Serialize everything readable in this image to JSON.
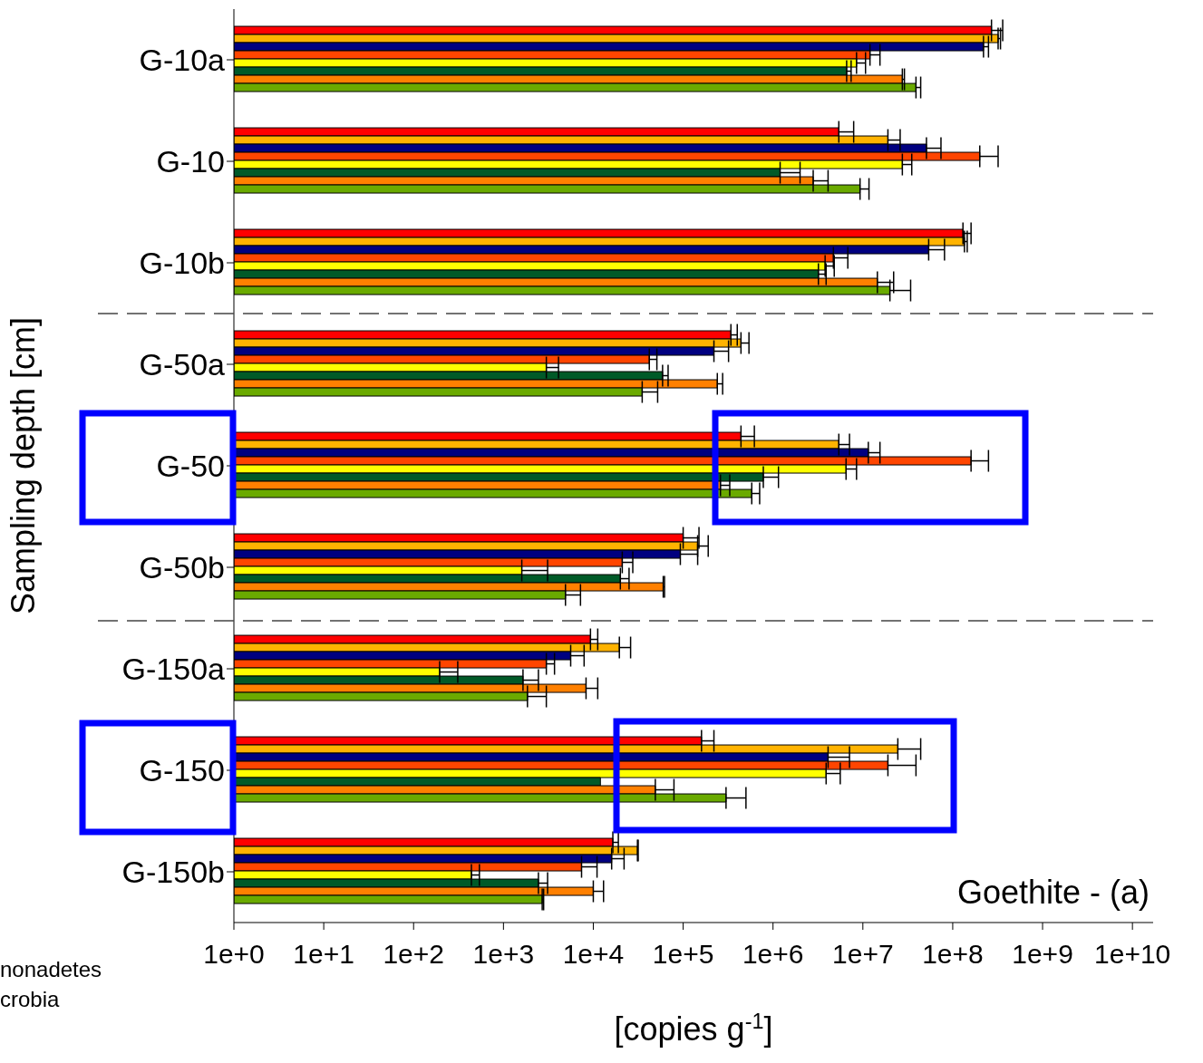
{
  "chart_data": {
    "type": "bar",
    "orientation": "horizontal",
    "log": "x",
    "xlabel": "[copies g$^{-1}$]",
    "ylabel": "Sampling depth [cm]",
    "annotations": [
      "Goethite - (a)",
      "nonadetes",
      "crobia"
    ],
    "categories": [
      "G-10a",
      "G-10",
      "G-10b",
      "G-50a",
      "G-50",
      "G-50b",
      "G-150a",
      "G-150",
      "G-150b"
    ],
    "xlim": [
      1,
      17000000000.0
    ],
    "xticks": [
      {
        "value": 1,
        "label": "1e+0"
      },
      {
        "value": 10,
        "label": "1e+1"
      },
      {
        "value": 100,
        "label": "1e+2"
      },
      {
        "value": 1000,
        "label": "1e+3"
      },
      {
        "value": 10000,
        "label": "1e+4"
      },
      {
        "value": 100000,
        "label": "1e+5"
      },
      {
        "value": 1000000,
        "label": "1e+6"
      },
      {
        "value": 10000000,
        "label": "1e+7"
      },
      {
        "value": 100000000,
        "label": "1e+8"
      },
      {
        "value": 1000000000,
        "label": "1e+9"
      },
      {
        "value": 10000000000,
        "label": "1e+10"
      }
    ],
    "series": [
      {
        "color": "#ff0000",
        "values": [
          270000000.0,
          5400000.0,
          130000000.0,
          340000.0,
          440000.0,
          100000.0,
          9300.0,
          160000.0,
          16500.0
        ],
        "errors": [
          [
            270000000.0,
            360000000.0
          ],
          [
            5400000.0,
            7900000.0
          ],
          [
            130000000.0,
            160000000.0
          ],
          [
            340000.0,
            400000.0
          ],
          [
            440000.0,
            620000.0
          ],
          [
            100000.0,
            150000.0
          ],
          [
            9300.0,
            11200.0
          ],
          [
            160000.0,
            220000.0
          ],
          [
            16500.0,
            19000.0
          ]
        ]
      },
      {
        "color": "#ffb300",
        "values": [
          320000000.0,
          19000000.0,
          135000000.0,
          440000.0,
          5400000.0,
          145000.0,
          19500.0,
          24500000.0,
          31000.0
        ],
        "errors": [
          [
            320000000.0,
            340000000.0
          ],
          [
            19000000.0,
            26000000.0
          ],
          [
            135000000.0,
            145000000.0
          ],
          [
            440000.0,
            540000.0
          ],
          [
            5400000.0,
            7100000.0
          ],
          [
            145000.0,
            190000.0
          ],
          [
            19500.0,
            26000.0
          ],
          [
            24500000.0,
            44000000.0
          ],
          [
            31000.0,
            31600.0
          ]
        ]
      },
      {
        "color": "#000080",
        "values": [
          220000000.0,
          51000000.0,
          54000000.0,
          220000.0,
          11500000.0,
          93000.0,
          5600.0,
          4100000.0,
          16000.0
        ],
        "errors": [
          [
            220000000.0,
            250000000.0
          ],
          [
            51000000.0,
            74000000.0
          ],
          [
            54000000.0,
            81000000.0
          ],
          [
            220000.0,
            320000.0
          ],
          [
            11500000.0,
            15500000.0
          ],
          [
            93000.0,
            145000.0
          ],
          [
            5600.0,
            7900.0
          ],
          [
            4100000.0,
            7100000.0
          ],
          [
            16000.0,
            22000.0
          ]
        ]
      },
      {
        "color": "#ff4500",
        "values": [
          12000000.0,
          200000000.0,
          4700000.0,
          42000.0,
          160000000.0,
          21000.0,
          3000.0,
          19000000.0,
          7400.0
        ],
        "errors": [
          [
            12000000.0,
            15500000.0
          ],
          [
            200000000.0,
            320000000.0
          ],
          [
            4700000.0,
            6800000.0
          ],
          [
            42000.0,
            51000.0
          ],
          [
            160000000.0,
            250000000.0
          ],
          [
            21000.0,
            27500.0
          ],
          [
            3000.0,
            3700.0
          ],
          [
            19000000.0,
            39000000.0
          ],
          [
            7400.0,
            11000.0
          ]
        ]
      },
      {
        "color": "#ffff00",
        "values": [
          8500000.0,
          27500000.0,
          3800000.0,
          3000.0,
          6500000.0,
          1600.0,
          195,
          3900000.0,
          440
        ],
        "errors": [
          [
            8500000.0,
            10700000.0
          ],
          [
            27500000.0,
            35000000.0
          ],
          [
            3800000.0,
            4800000.0
          ],
          [
            3000.0,
            4100.0
          ],
          [
            6500000.0,
            8500000.0
          ],
          [
            1600.0,
            3100.0
          ],
          [
            195,
            310
          ],
          [
            3900000.0,
            5600000.0
          ],
          [
            440,
            540
          ]
        ]
      },
      {
        "color": "#005a28",
        "values": [
          6600000.0,
          1200000.0,
          3200000.0,
          59000.0,
          780000.0,
          20000.0,
          1650.0,
          12000.0,
          2450.0
        ],
        "errors": [
          [
            6600000.0,
            7400000.0
          ],
          [
            1200000.0,
            2000000.0
          ],
          [
            3200000.0,
            3900000.0
          ],
          [
            59000.0,
            68000.0
          ],
          [
            780000.0,
            1150000.0
          ],
          [
            20000.0,
            25000.0
          ],
          [
            1650.0,
            2450.0
          ],
          null,
          [
            2450.0,
            3100.0
          ]
        ]
      },
      {
        "color": "#ff8000",
        "values": [
          27500000.0,
          2800000.0,
          14500000.0,
          240000.0,
          260000.0,
          60000.0,
          8300.0,
          49000.0,
          10000.0
        ],
        "errors": [
          [
            27500000.0,
            29000000.0
          ],
          [
            2800000.0,
            4100000.0
          ],
          [
            14500000.0,
            22000000.0
          ],
          [
            240000.0,
            275000.0
          ],
          [
            260000.0,
            330000.0
          ],
          [
            60000.0,
            62000.0
          ],
          [
            8300.0,
            11200.0
          ],
          [
            49000.0,
            79000.0
          ],
          [
            10000.0,
            13000.0
          ]
        ]
      },
      {
        "color": "#6aaa00",
        "values": [
          39000000.0,
          9300000.0,
          20000000.0,
          35000.0,
          580000.0,
          4900.0,
          1850.0,
          300000.0,
          2700.0
        ],
        "errors": [
          [
            39000000.0,
            44000000.0
          ],
          [
            9300000.0,
            11700000.0
          ],
          [
            20000000.0,
            34000000.0
          ],
          [
            35000.0,
            52000.0
          ],
          [
            580000.0,
            710000.0
          ],
          [
            4900.0,
            7200.0
          ],
          [
            1850.0,
            3000.0
          ],
          [
            300000.0,
            500000.0
          ],
          [
            2700.0,
            2800.0
          ]
        ]
      }
    ]
  }
}
